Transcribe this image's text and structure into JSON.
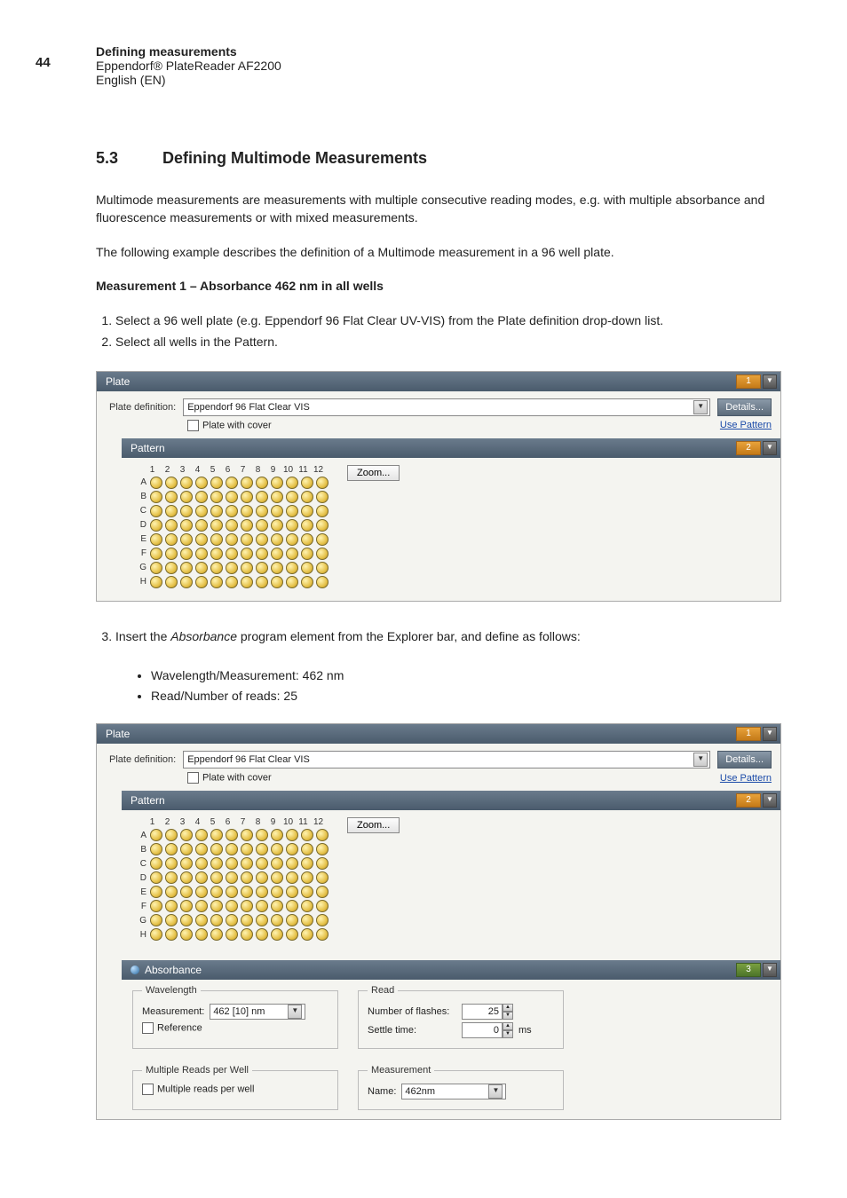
{
  "page_number": "44",
  "header": {
    "line1": "Defining measurements",
    "line2": "Eppendorf® PlateReader AF2200",
    "line3": "English (EN)"
  },
  "section": {
    "number": "5.3",
    "title": "Defining Multimode Measurements"
  },
  "para1": "Multimode measurements are measurements with multiple consecutive reading modes, e.g. with multiple absorbance and fluorescence measurements or with mixed measurements.",
  "para2": "The following example describes the definition of a Multimode measurement in a 96 well plate.",
  "meas1_heading": "Measurement 1 – Absorbance 462 nm in all wells",
  "steps12": {
    "s1": "Select a 96 well plate (e.g. Eppendorf 96 Flat Clear UV-VIS) from the Plate definition drop-down list.",
    "s2": "Select all wells in the Pattern."
  },
  "step3_intro_a": "Insert the ",
  "step3_intro_b": "Absorbance",
  "step3_intro_c": " program element from the Explorer bar, and define as follows:",
  "bullets": {
    "b1": "Wavelength/Measurement: 462 nm",
    "b2": "Read/Number of reads: 25"
  },
  "ui": {
    "plate_bar": "Plate",
    "pattern_bar": "Pattern",
    "absorbance_bar": "Absorbance",
    "badge1": "1",
    "badge2": "2",
    "badge3": "3",
    "plate_def_label": "Plate definition:",
    "plate_def_value": "Eppendorf 96 Flat Clear VIS",
    "details": "Details...",
    "plate_with_cover": "Plate with cover",
    "use_pattern": "Use Pattern",
    "zoom": "Zoom...",
    "cols": [
      "1",
      "2",
      "3",
      "4",
      "5",
      "6",
      "7",
      "8",
      "9",
      "10",
      "11",
      "12"
    ],
    "rows": [
      "A",
      "B",
      "C",
      "D",
      "E",
      "F",
      "G",
      "H"
    ],
    "wavelength_legend": "Wavelength",
    "measurement_label": "Measurement:",
    "measurement_value": "462 [10] nm",
    "reference": "Reference",
    "read_legend": "Read",
    "flashes_label": "Number of flashes:",
    "flashes_value": "25",
    "settle_label": "Settle time:",
    "settle_value": "0",
    "ms": "ms",
    "mrw_legend": "Multiple Reads per Well",
    "mrw_check": "Multiple reads per well",
    "meas_legend": "Measurement",
    "name_label": "Name:",
    "name_value": "462nm"
  }
}
